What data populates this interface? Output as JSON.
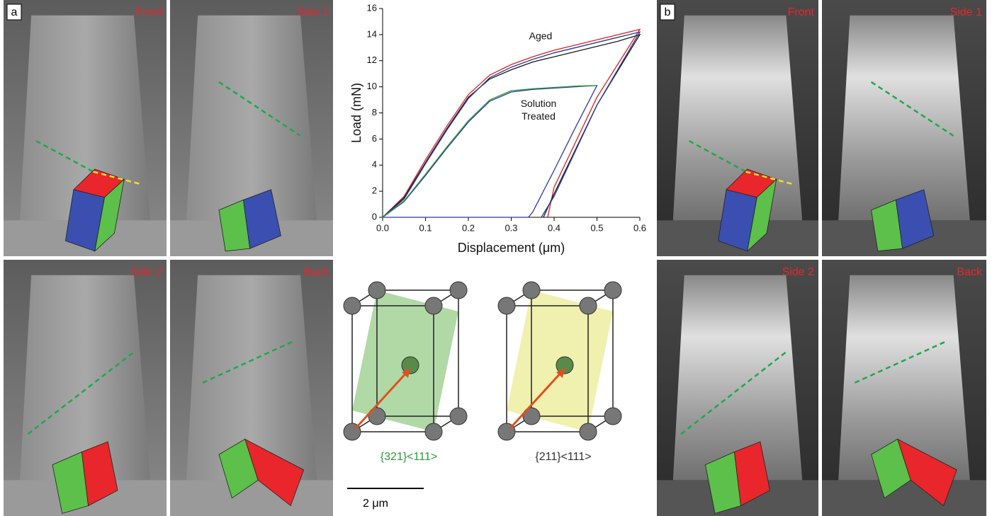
{
  "panels": {
    "a": {
      "label": "a",
      "views": [
        "Front",
        "Side 1",
        "Side 2",
        "Back"
      ]
    },
    "b": {
      "label": "b",
      "views": [
        "Front",
        "Side 1",
        "Side 2",
        "Back"
      ]
    }
  },
  "chart_data": {
    "type": "line",
    "x_label": "Displacement (μm)",
    "y_label": "Load (mN)",
    "annotations": [
      "Aged",
      "Solution Treated"
    ],
    "xlim": [
      0,
      0.6
    ],
    "xticks": [
      {
        "value": 0,
        "label": "0.0"
      },
      0.1,
      0.2,
      0.3,
      0.4,
      0.5,
      0.6
    ],
    "ylim": [
      0,
      16
    ],
    "yticks": [
      0,
      2,
      4,
      6,
      8,
      10,
      12,
      14,
      16
    ],
    "series": [
      {
        "color": "#e02020",
        "x": [
          0,
          0.05,
          0.1,
          0.15,
          0.2,
          0.25,
          0.3,
          0.35,
          0.4,
          0.45,
          0.5,
          0.55,
          0.6,
          0.5,
          0.4,
          0.385
        ],
        "values": [
          0,
          1.6,
          4.4,
          7,
          9.4,
          10.9,
          11.7,
          12.3,
          12.8,
          13.2,
          13.6,
          14,
          14.4,
          9.2,
          2.3,
          0
        ]
      },
      {
        "color": "#1a1a1a",
        "x": [
          0,
          0.05,
          0.1,
          0.15,
          0.2,
          0.25,
          0.3,
          0.35,
          0.4,
          0.45,
          0.5,
          0.55,
          0.6,
          0.5,
          0.4,
          0.375
        ],
        "values": [
          0,
          1.5,
          4.2,
          6.8,
          9.2,
          10.6,
          11.3,
          11.9,
          12.3,
          12.7,
          13.1,
          13.5,
          14,
          8.6,
          1.8,
          0
        ]
      },
      {
        "color": "#2a3a9a",
        "x": [
          0,
          0.05,
          0.1,
          0.15,
          0.2,
          0.25,
          0.3,
          0.35,
          0.4,
          0.45,
          0.5,
          0.55,
          0.6,
          0.5,
          0.4,
          0.37
        ],
        "values": [
          0,
          1.4,
          4.1,
          6.7,
          9.1,
          10.7,
          11.5,
          12.1,
          12.6,
          13,
          13.4,
          13.8,
          14.2,
          8.6,
          1.6,
          0
        ]
      },
      {
        "color": "#2a3a9a",
        "x": [
          0,
          0.05,
          0.1,
          0.15,
          0.2,
          0.25,
          0.3,
          0.35,
          0.4,
          0.45,
          0.5,
          0.45,
          0.4,
          0.35,
          0.34,
          0.2,
          0
        ],
        "values": [
          0,
          1.2,
          3.2,
          5.3,
          7.3,
          8.9,
          9.6,
          9.8,
          9.9,
          10,
          10.1,
          6.9,
          3.6,
          0.4,
          0,
          0,
          0
        ]
      },
      {
        "color": "#2a9a3a",
        "x": [
          0,
          0.05,
          0.1,
          0.15,
          0.2,
          0.25,
          0.3,
          0.35,
          0.4,
          0.45,
          0.5
        ],
        "values": [
          0,
          1.25,
          3.3,
          5.4,
          7.4,
          9,
          9.7,
          9.85,
          9.95,
          10.05,
          10.1
        ]
      }
    ]
  },
  "crystals": [
    {
      "label": "{321}<111>"
    },
    {
      "label": "{211}<111>"
    }
  ],
  "scale_bar": {
    "label": "2 μm"
  }
}
